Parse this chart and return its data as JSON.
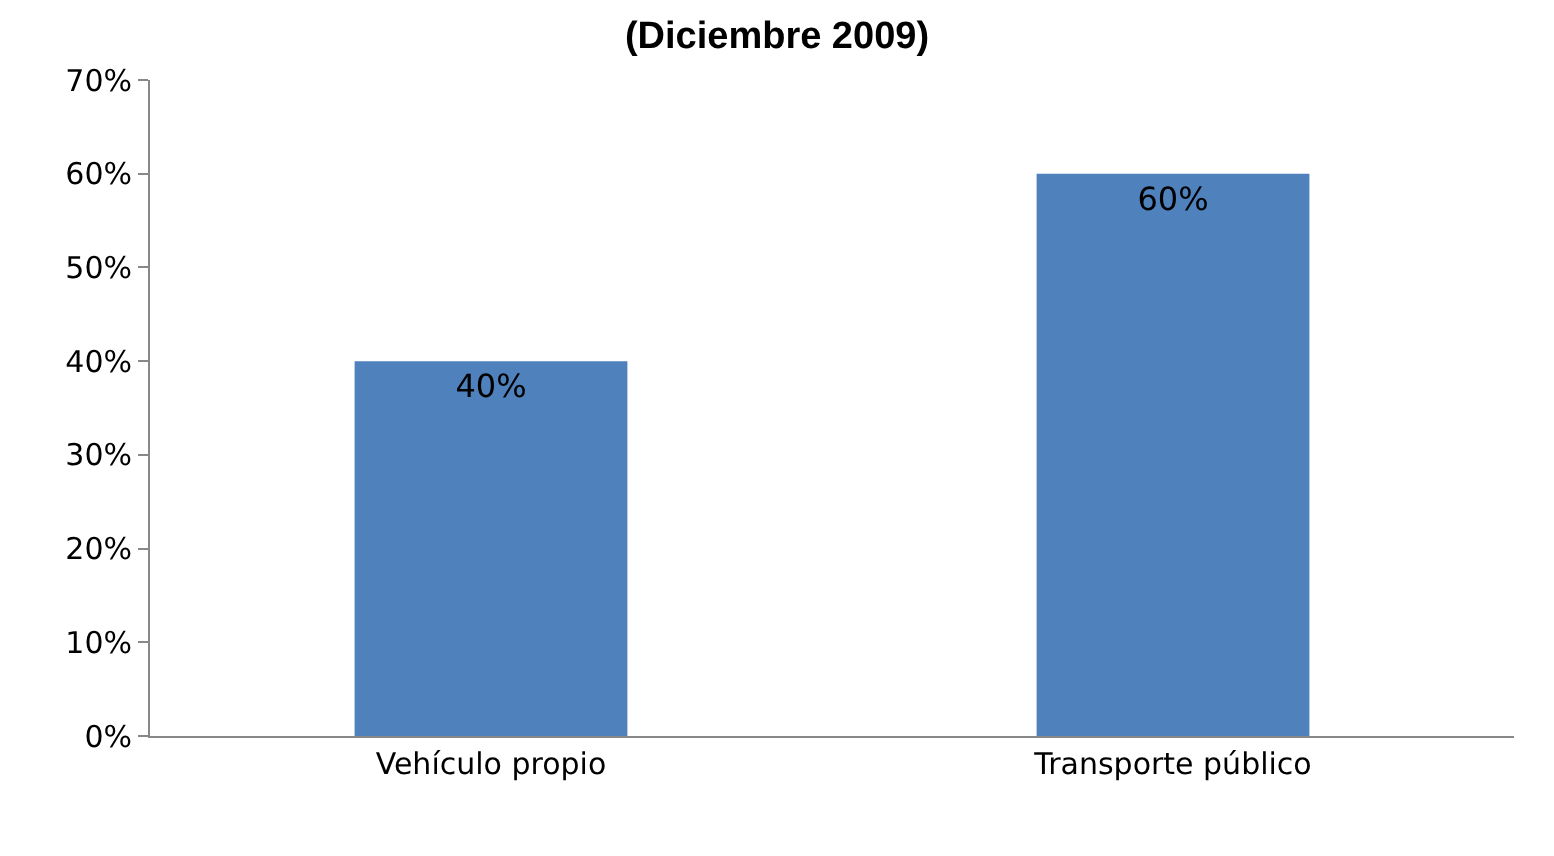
{
  "chart_data": {
    "type": "bar",
    "title": "(Diciembre 2009)",
    "categories": [
      "Vehículo propio",
      "Transporte público"
    ],
    "values": [
      40,
      60
    ],
    "value_labels": [
      "40%",
      "60%"
    ],
    "color": "#4f81bd",
    "ylim": [
      0,
      70
    ],
    "yticks": [
      {
        "value": 0,
        "label": "0%"
      },
      {
        "value": 10,
        "label": "10%"
      },
      {
        "value": 20,
        "label": "20%"
      },
      {
        "value": 30,
        "label": "30%"
      },
      {
        "value": 40,
        "label": "40%"
      },
      {
        "value": 50,
        "label": "50%"
      },
      {
        "value": 60,
        "label": "60%"
      },
      {
        "value": 70,
        "label": "70%"
      }
    ],
    "grid": false
  }
}
